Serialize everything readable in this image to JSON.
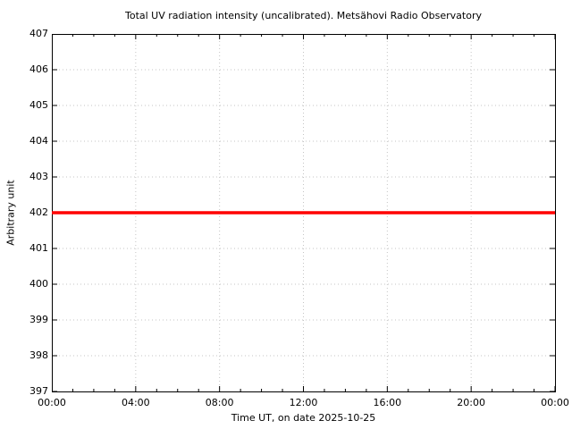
{
  "chart_data": {
    "type": "line",
    "title": "Total UV radiation intensity (uncalibrated). Metsähovi Radio Observatory",
    "xlabel": "Time UT, on date 2025-10-25",
    "ylabel": "Arbitrary unit",
    "x_tick_labels": [
      "00:00",
      "04:00",
      "08:00",
      "12:00",
      "16:00",
      "20:00",
      "00:00"
    ],
    "x_range_hours": [
      0,
      24
    ],
    "x_major_interval_hours": 4,
    "x_minor_interval_hours": 1,
    "y_tick_labels": [
      "397",
      "398",
      "399",
      "400",
      "401",
      "402",
      "403",
      "404",
      "405",
      "406",
      "407"
    ],
    "ylim": [
      397,
      407
    ],
    "y_tick_interval": 1,
    "grid": "dotted, at major ticks",
    "legend": "none",
    "series": [
      {
        "name": "Total UV radiation intensity",
        "color": "#ff0000",
        "x_hours": [
          0,
          24
        ],
        "values": [
          402,
          402
        ]
      }
    ],
    "colors": {
      "line": "#ff0000",
      "grid": "#c4c4c4",
      "axis": "#000000",
      "background": "#ffffff",
      "text": "#000000"
    }
  }
}
